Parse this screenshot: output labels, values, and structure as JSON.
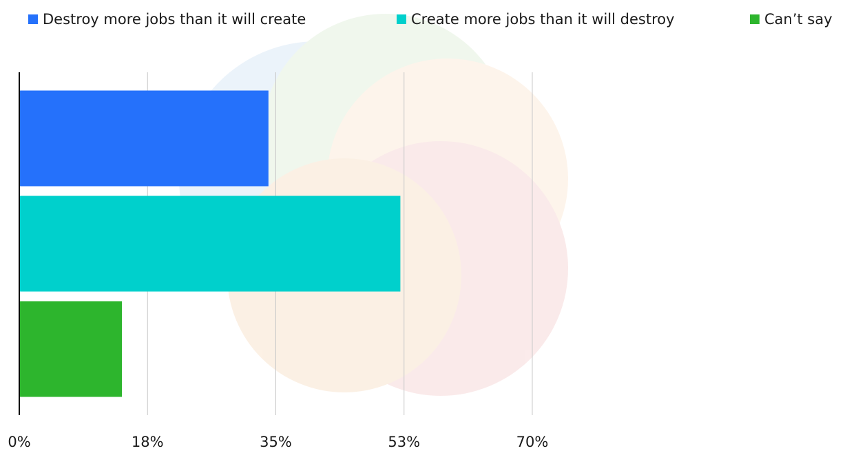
{
  "chart_data": {
    "type": "bar",
    "orientation": "horizontal",
    "categories": [
      null
    ],
    "series": [
      {
        "name": "Destroy more jobs than it will create",
        "color": "#2571fb",
        "values": [
          34
        ]
      },
      {
        "name": "Create more jobs than it will destroy",
        "color": "#00d0cc",
        "values": [
          52
        ]
      },
      {
        "name": "Can’t say",
        "color": "#2db52d",
        "values": [
          14
        ]
      }
    ],
    "xlim": [
      0,
      70
    ],
    "xticks": [
      {
        "value": 0,
        "label": "0%"
      },
      {
        "value": 17.5,
        "label": "18%"
      },
      {
        "value": 35,
        "label": "35%"
      },
      {
        "value": 52.5,
        "label": "53%"
      },
      {
        "value": 70,
        "label": "70%"
      }
    ],
    "grid": true,
    "legend": "top"
  }
}
